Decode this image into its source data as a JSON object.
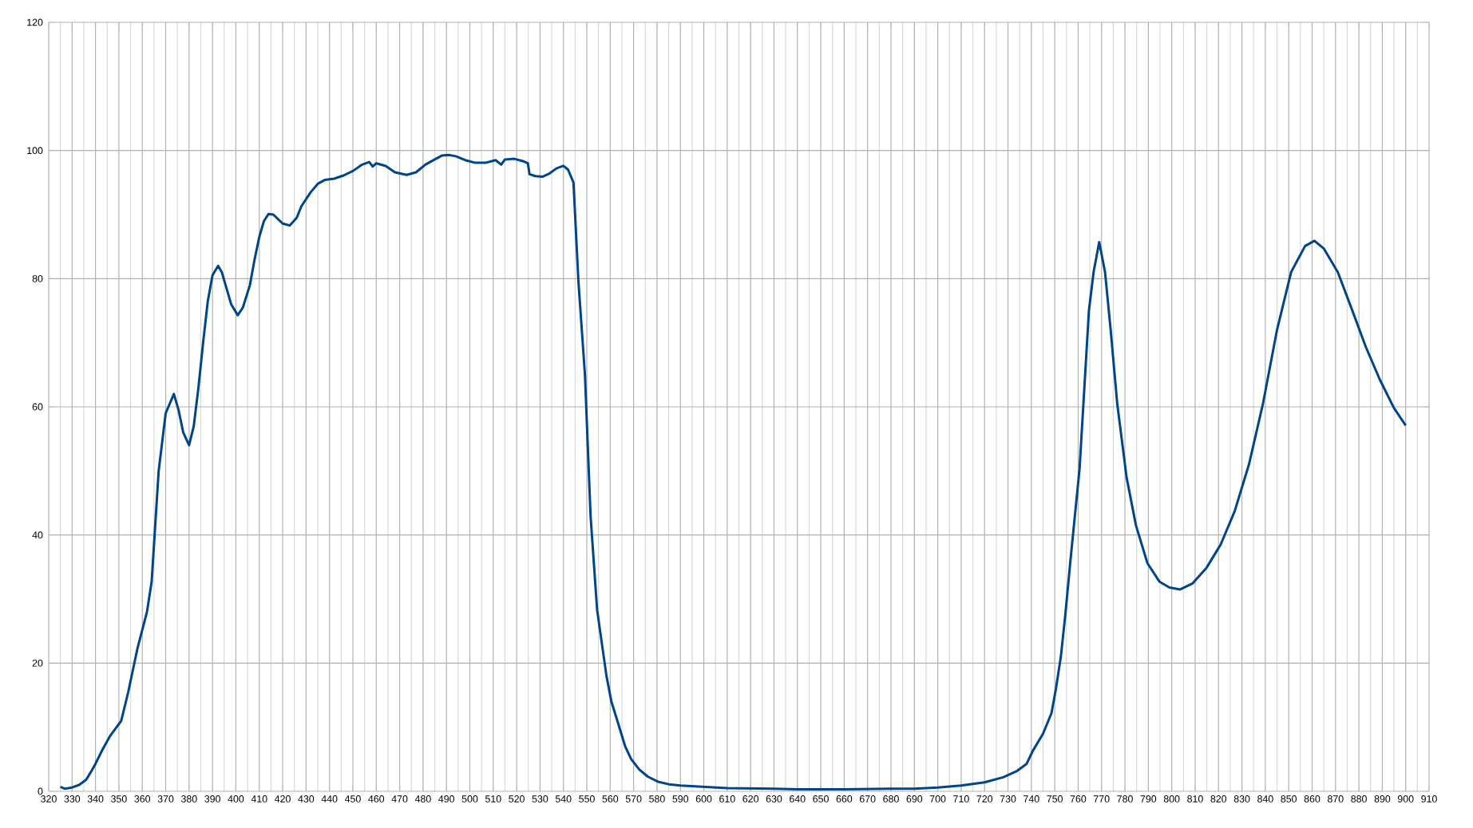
{
  "chart_data": {
    "type": "line",
    "x": [
      325,
      327,
      330,
      333,
      336,
      338,
      340,
      343,
      346,
      351,
      354,
      358,
      362,
      364,
      367,
      370,
      373.5,
      375.5,
      377.5,
      380,
      382,
      384,
      386,
      388,
      390,
      392.4,
      394,
      396,
      398,
      400.8,
      403,
      406,
      408,
      410,
      412,
      414,
      416,
      418,
      420,
      423,
      426,
      428,
      432,
      435,
      438,
      442,
      446,
      450,
      454,
      457,
      458.5,
      460,
      464,
      468,
      473,
      477,
      481,
      485,
      488,
      491,
      494,
      498,
      502,
      507,
      511,
      513.4,
      515,
      519,
      523,
      524.8,
      525.5,
      528,
      531,
      534,
      537,
      540,
      542,
      544.3,
      546.4,
      549.2,
      551.6,
      554.4,
      558.4,
      560.5,
      563.3,
      566.4,
      569,
      572.4,
      576,
      580.4,
      585,
      590,
      600,
      610,
      630,
      640,
      660,
      680,
      690,
      700,
      710,
      720,
      728,
      734,
      738,
      740.6,
      745,
      748.6,
      750.5,
      752.6,
      754.5,
      756.6,
      758.6,
      760.6,
      762.5,
      764.6,
      766.6,
      769,
      771.5,
      773.9,
      776.7,
      780.7,
      784.7,
      789.6,
      794.8,
      799,
      803.6,
      808.8,
      814.9,
      820.9,
      826.9,
      833,
      839,
      845,
      851,
      857,
      861,
      865,
      871,
      877,
      883,
      889,
      895,
      900
    ],
    "series": [
      {
        "color": "#004586",
        "values": [
          0.7,
          0.4,
          0.6,
          1.0,
          1.8,
          3,
          4.3,
          6.5,
          8.5,
          11.0,
          15.5,
          22.4,
          28,
          32.7,
          50,
          59,
          62,
          59.5,
          56,
          54,
          57,
          63,
          70,
          76.5,
          80.5,
          82,
          81,
          78.5,
          76,
          74.3,
          75.5,
          79,
          83,
          86.5,
          89,
          90.1,
          90,
          89.3,
          88.6,
          88.3,
          89.5,
          91.3,
          93.5,
          94.8,
          95.4,
          95.6,
          96.1,
          96.8,
          97.8,
          98.2,
          97.5,
          98.0,
          97.6,
          96.6,
          96.2,
          96.6,
          97.8,
          98.6,
          99.2,
          99.3,
          99.1,
          98.5,
          98.1,
          98.1,
          98.5,
          97.8,
          98.6,
          98.7,
          98.3,
          98.0,
          96.3,
          96.0,
          95.9,
          96.4,
          97.2,
          97.6,
          97.0,
          95,
          79.6,
          65,
          43,
          28.3,
          18,
          14,
          10.7,
          7,
          5,
          3.4,
          2.3,
          1.5,
          1.1,
          0.9,
          0.7,
          0.5,
          0.4,
          0.3,
          0.3,
          0.4,
          0.4,
          0.6,
          0.9,
          1.4,
          2.2,
          3.2,
          4.3,
          6.3,
          9,
          12.2,
          16,
          21,
          27.5,
          35.6,
          43,
          50.3,
          62,
          75,
          81,
          85.7,
          81,
          72,
          60.5,
          49,
          41.5,
          35.6,
          32.7,
          31.8,
          31.5,
          32.4,
          34.9,
          38.5,
          43.7,
          51,
          60.5,
          72,
          81,
          85.1,
          85.9,
          84.7,
          81,
          75.2,
          69.3,
          64.2,
          59.8,
          57.1
        ]
      }
    ],
    "xlim": [
      320,
      910
    ],
    "ylim": [
      0,
      120
    ],
    "xticks": [
      320,
      330,
      340,
      350,
      360,
      370,
      380,
      390,
      400,
      410,
      420,
      430,
      440,
      450,
      460,
      470,
      480,
      490,
      500,
      510,
      520,
      530,
      540,
      550,
      560,
      570,
      580,
      590,
      600,
      610,
      620,
      630,
      640,
      650,
      660,
      670,
      680,
      690,
      700,
      710,
      720,
      730,
      740,
      750,
      760,
      770,
      780,
      790,
      800,
      810,
      820,
      830,
      840,
      850,
      860,
      870,
      880,
      890,
      900,
      910
    ],
    "yticks": [
      0,
      20,
      40,
      60,
      80,
      100,
      120
    ],
    "grid": true
  }
}
